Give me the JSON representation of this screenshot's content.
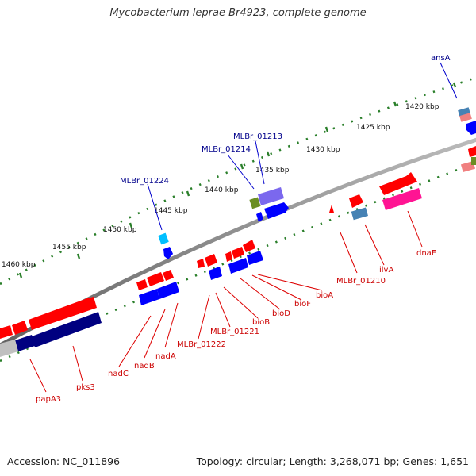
{
  "title": "Mycobacterium leprae Br4923, complete genome",
  "footer": {
    "accession": "Accession: NC_011896",
    "summary": "Topology: circular; Length: 3,268,071 bp; Genes: 1,651"
  },
  "colors": {
    "backbone": "#8c8c8c",
    "tick": "#2a7f2a",
    "top_label": "#00008b",
    "bottom_label": "#cc0000",
    "red": "#ff0000",
    "blue": "#0000ff",
    "navy": "#000080",
    "purple": "#7b68ee",
    "pink": "#ff1493",
    "steel": "#4682b4",
    "sky": "#00bfff",
    "olive": "#6b8e23",
    "salmon": "#f08080",
    "grey": "#c0c0c0"
  },
  "kbp_ticks": [
    "1420 kbp",
    "1425 kbp",
    "1430 kbp",
    "1435 kbp",
    "1440 kbp",
    "1445 kbp",
    "1450 kbp",
    "1455 kbp",
    "1460 kbp"
  ],
  "top_genes": [
    "ansA",
    "MLBr_01213",
    "MLBr_01214",
    "MLBr_01224"
  ],
  "bottom_genes": [
    "dnaE",
    "ilvA",
    "MLBr_01210",
    "bioA",
    "bioF",
    "bioD",
    "bioB",
    "MLBr_01221",
    "MLBr_01222",
    "nadA",
    "nadB",
    "nadC",
    "pks3",
    "papA3"
  ]
}
